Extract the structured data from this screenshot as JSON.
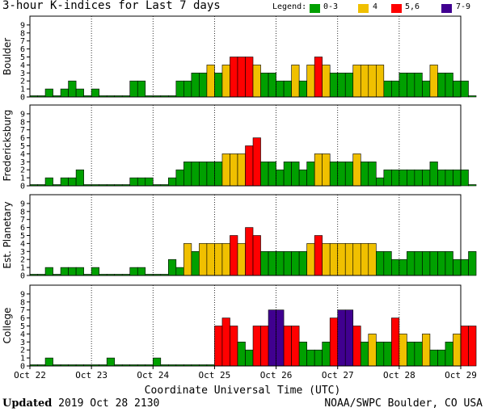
{
  "title": "3-hour K-indices for Last 7 days",
  "legend": {
    "label": "Legend:",
    "items": [
      {
        "label": "0-3",
        "color": "#00A000"
      },
      {
        "label": "4",
        "color": "#F0C000"
      },
      {
        "label": "5,6",
        "color": "#FF0000"
      },
      {
        "label": "7-9",
        "color": "#400090"
      }
    ]
  },
  "footer": {
    "updated_label": "Updated",
    "updated_value": "2019 Oct 28 2130",
    "source": "NOAA/SWPC Boulder, CO USA"
  },
  "chart_data": {
    "type": "bar",
    "xlabel": "Coordinate Universal Time (UTC)",
    "x_ticks": [
      "Oct 22",
      "Oct 23",
      "Oct 24",
      "Oct 25",
      "Oct 26",
      "Oct 27",
      "Oct 28",
      "Oct 29"
    ],
    "ylim": [
      0,
      9
    ],
    "y_ticks": [
      0,
      1,
      2,
      3,
      4,
      5,
      6,
      7,
      8,
      9
    ],
    "intervals_per_day": 8,
    "days": 7,
    "panels": [
      {
        "name": "Boulder",
        "values": [
          0,
          0,
          1,
          0,
          1,
          2,
          1,
          0,
          1,
          0,
          0,
          0,
          0,
          2,
          2,
          0,
          0,
          0,
          0,
          2,
          2,
          3,
          3,
          4,
          3,
          4,
          5,
          5,
          5,
          4,
          3,
          3,
          2,
          2,
          4,
          2,
          4,
          5,
          4,
          3,
          3,
          3,
          4,
          4,
          4,
          4,
          2,
          2,
          3,
          3,
          3,
          2,
          4,
          3,
          3,
          2,
          2,
          0
        ]
      },
      {
        "name": "Fredericksburg",
        "values": [
          0,
          0,
          1,
          0,
          1,
          1,
          2,
          0,
          0,
          0,
          0,
          0,
          0,
          1,
          1,
          1,
          0,
          0,
          1,
          2,
          3,
          3,
          3,
          3,
          3,
          4,
          4,
          4,
          5,
          6,
          3,
          3,
          2,
          3,
          3,
          2,
          3,
          4,
          4,
          3,
          3,
          3,
          4,
          3,
          3,
          1,
          2,
          2,
          2,
          2,
          2,
          2,
          3,
          2,
          2,
          2,
          2,
          0
        ]
      },
      {
        "name": "Est. Planetary",
        "values": [
          0,
          0,
          1,
          0,
          1,
          1,
          1,
          0,
          1,
          0,
          0,
          0,
          0,
          1,
          1,
          0,
          0,
          0,
          2,
          1,
          4,
          3,
          4,
          4,
          4,
          4,
          5,
          4,
          6,
          5,
          3,
          3,
          3,
          3,
          3,
          3,
          4,
          5,
          4,
          4,
          4,
          4,
          4,
          4,
          4,
          3,
          3,
          2,
          2,
          3,
          3,
          3,
          3,
          3,
          3,
          2,
          2,
          3
        ]
      },
      {
        "name": "College",
        "values": [
          0,
          0,
          1,
          0,
          0,
          0,
          0,
          0,
          0,
          0,
          1,
          0,
          0,
          0,
          0,
          0,
          1,
          0,
          0,
          0,
          0,
          0,
          0,
          0,
          5,
          6,
          5,
          3,
          2,
          5,
          5,
          7,
          7,
          5,
          5,
          3,
          2,
          2,
          3,
          6,
          7,
          7,
          5,
          3,
          4,
          3,
          3,
          6,
          4,
          3,
          3,
          4,
          2,
          2,
          3,
          4,
          5,
          5
        ]
      }
    ]
  }
}
